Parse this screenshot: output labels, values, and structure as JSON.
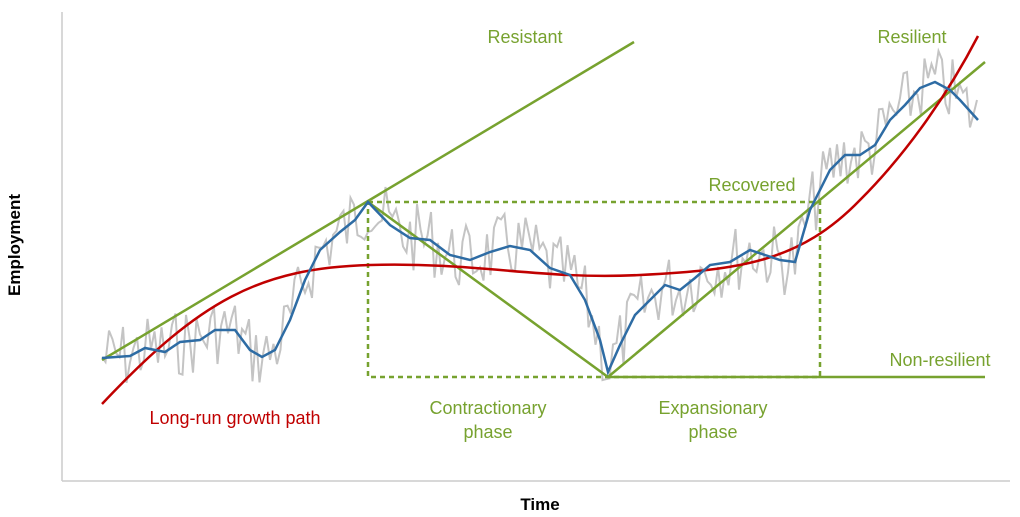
{
  "axes": {
    "y_label": "Employment",
    "x_label": "Time"
  },
  "labels": {
    "resistant": "Resistant",
    "resilient": "Resilient",
    "recovered": "Recovered",
    "non_resilient": "Non-resilient",
    "long_run": "Long-run growth path",
    "contractionary": [
      "Contractionary",
      "phase"
    ],
    "expansionary": [
      "Expansionary",
      "phase"
    ]
  }
}
